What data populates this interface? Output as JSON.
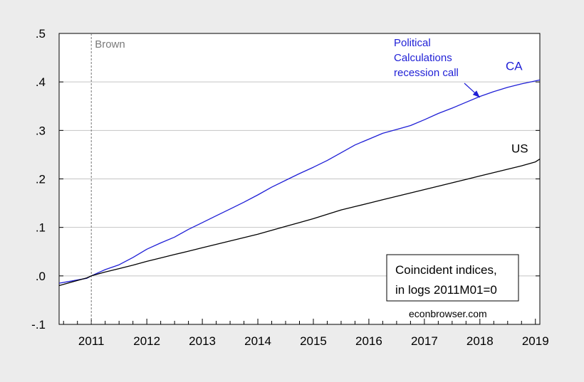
{
  "chart_data": {
    "type": "line",
    "title": "",
    "xlabel": "",
    "ylabel": "",
    "xlim": [
      2010.42,
      2019.08
    ],
    "ylim": [
      -0.1,
      0.5
    ],
    "grid": true,
    "y_ticks": [
      -0.1,
      0.0,
      0.1,
      0.2,
      0.3,
      0.4,
      0.5
    ],
    "y_tick_labels": [
      "-.1",
      ".0",
      ".1",
      ".2",
      ".3",
      ".4",
      ".5"
    ],
    "x_ticks": [
      2011,
      2012,
      2013,
      2014,
      2015,
      2016,
      2017,
      2018,
      2019
    ],
    "x_tick_labels": [
      "2011",
      "2012",
      "2013",
      "2014",
      "2015",
      "2016",
      "2017",
      "2018",
      "2019"
    ],
    "series": [
      {
        "name": "CA",
        "color": "#1f1fd6",
        "x": [
          2010.42,
          2010.67,
          2010.92,
          2011.0,
          2011.25,
          2011.5,
          2011.75,
          2012.0,
          2012.25,
          2012.5,
          2012.75,
          2013.0,
          2013.25,
          2013.5,
          2013.75,
          2014.0,
          2014.25,
          2014.5,
          2014.75,
          2015.0,
          2015.25,
          2015.5,
          2015.75,
          2016.0,
          2016.25,
          2016.5,
          2016.75,
          2017.0,
          2017.25,
          2017.5,
          2017.75,
          2018.0,
          2018.25,
          2018.5,
          2018.75,
          2019.0,
          2019.08
        ],
        "values": [
          -0.015,
          -0.01,
          -0.005,
          0.0,
          0.013,
          0.023,
          0.038,
          0.055,
          0.068,
          0.08,
          0.096,
          0.11,
          0.124,
          0.138,
          0.152,
          0.167,
          0.183,
          0.197,
          0.211,
          0.224,
          0.238,
          0.254,
          0.27,
          0.282,
          0.294,
          0.302,
          0.31,
          0.322,
          0.335,
          0.346,
          0.358,
          0.37,
          0.38,
          0.389,
          0.396,
          0.402,
          0.404
        ]
      },
      {
        "name": "US",
        "color": "#000000",
        "x": [
          2010.42,
          2010.67,
          2010.92,
          2011.0,
          2011.25,
          2011.5,
          2011.75,
          2012.0,
          2012.25,
          2012.5,
          2012.75,
          2013.0,
          2013.25,
          2013.5,
          2013.75,
          2014.0,
          2014.25,
          2014.5,
          2014.75,
          2015.0,
          2015.25,
          2015.5,
          2015.75,
          2016.0,
          2016.25,
          2016.5,
          2016.75,
          2017.0,
          2017.25,
          2017.5,
          2017.75,
          2018.0,
          2018.25,
          2018.5,
          2018.75,
          2019.0,
          2019.08
        ],
        "values": [
          -0.02,
          -0.012,
          -0.004,
          0.0,
          0.008,
          0.015,
          0.022,
          0.03,
          0.037,
          0.044,
          0.051,
          0.058,
          0.065,
          0.072,
          0.079,
          0.086,
          0.094,
          0.102,
          0.11,
          0.118,
          0.127,
          0.136,
          0.143,
          0.15,
          0.157,
          0.164,
          0.171,
          0.178,
          0.185,
          0.192,
          0.199,
          0.206,
          0.213,
          0.22,
          0.227,
          0.235,
          0.241
        ]
      }
    ],
    "annotations": {
      "brown_label": "Brown",
      "brown_x": 2011.0,
      "ca_label": "CA",
      "us_label": "US",
      "recession_call_lines": [
        "Political",
        "Calculations",
        "recession call"
      ],
      "recession_call_color": "#1f1fd6",
      "arrow_target_x": 2018.0,
      "arrow_target_y": 0.368,
      "legend_box_lines": [
        "Coincident indices,",
        "in logs 2011M01=0"
      ],
      "legend_box_placement": "bottom-right",
      "source": "econbrowser.com"
    },
    "colors": {
      "background": "#ececec",
      "plot_background": "#ffffff",
      "grid": "#c4c4c4",
      "axis": "#000000",
      "brown_line": "#777777",
      "brown_text": "#7a7a7a"
    }
  }
}
